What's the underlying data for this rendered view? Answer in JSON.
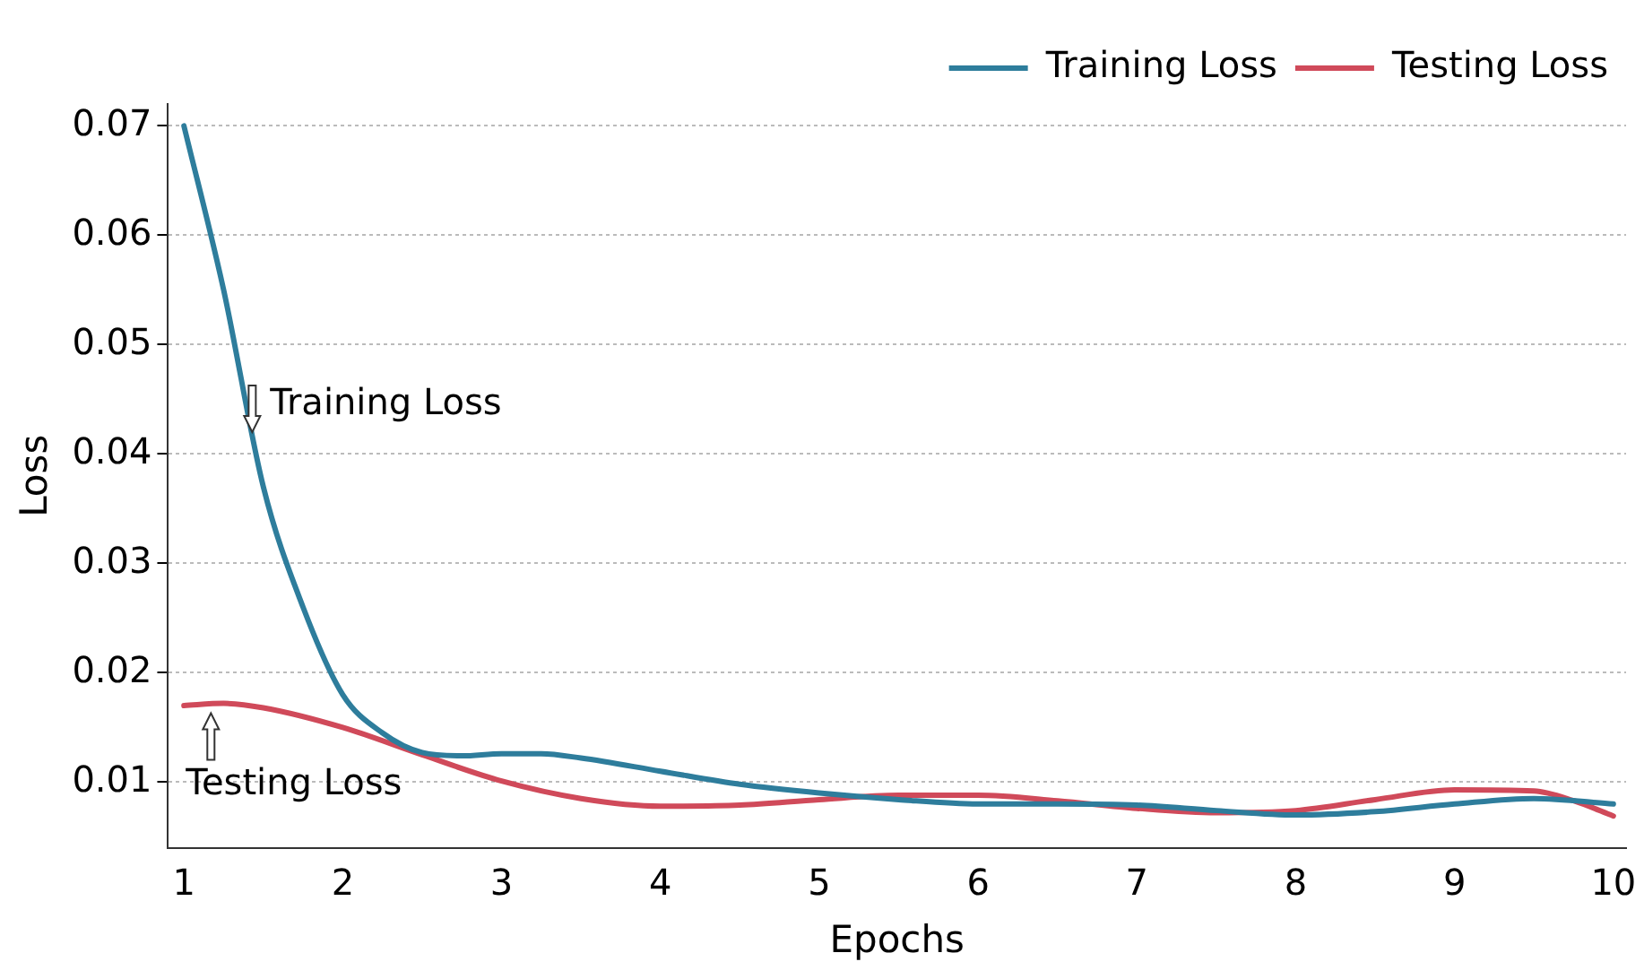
{
  "chart_data": {
    "type": "line",
    "xlabel": "Epochs",
    "ylabel": "Loss",
    "xlim": [
      0.9,
      10.08
    ],
    "xticks": [
      1,
      2,
      3,
      4,
      5,
      6,
      7,
      8,
      9,
      10
    ],
    "ylim": [
      0.004,
      0.072
    ],
    "yticks": [
      0.01,
      0.02,
      0.03,
      0.04,
      0.05,
      0.06,
      0.07
    ],
    "grid": "y",
    "legend": "top right",
    "marker": "none",
    "line_style": "solid",
    "series": [
      {
        "name": "Training Loss",
        "color": "#2e7d9c",
        "x": [
          1,
          1.25,
          1.5,
          1.75,
          2,
          2.25,
          2.5,
          2.75,
          3,
          3.25,
          3.5,
          4,
          4.5,
          5,
          5.5,
          6,
          6.5,
          7,
          7.5,
          8,
          8.5,
          9,
          9.5,
          10
        ],
        "values": [
          0.07,
          0.055,
          0.037,
          0.026,
          0.018,
          0.0145,
          0.0127,
          0.0124,
          0.0126,
          0.0126,
          0.0122,
          0.011,
          0.0098,
          0.009,
          0.0084,
          0.008,
          0.008,
          0.0079,
          0.0074,
          0.007,
          0.0073,
          0.008,
          0.0085,
          0.008
        ]
      },
      {
        "name": "Testing Loss",
        "color": "#d04a5a",
        "x": [
          1,
          1.25,
          1.5,
          2,
          2.5,
          3,
          3.5,
          4,
          4.5,
          5,
          5.5,
          6,
          6.5,
          7,
          7.5,
          8,
          8.5,
          9,
          9.5,
          9.75,
          10
        ],
        "values": [
          0.017,
          0.0172,
          0.0168,
          0.015,
          0.0125,
          0.0101,
          0.0085,
          0.0078,
          0.0079,
          0.0084,
          0.0088,
          0.0088,
          0.0083,
          0.0076,
          0.0072,
          0.0074,
          0.0084,
          0.0093,
          0.0092,
          0.0083,
          0.0069
        ]
      }
    ],
    "annotations": [
      {
        "text": "Training Loss",
        "x": 1.43,
        "y": 0.042
      },
      {
        "text": "Testing Loss",
        "x": 1.17,
        "y": 0.0163
      }
    ]
  }
}
